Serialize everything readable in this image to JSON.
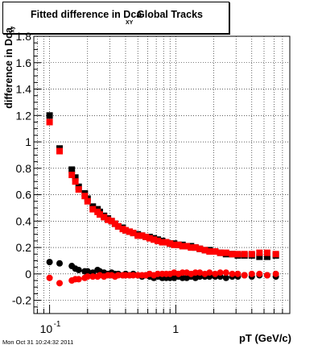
{
  "chart_data": {
    "type": "scatter",
    "title": "Fitted difference in Dca",
    "title_subscript": "XY",
    "title_tail": "Global Tracks",
    "xlabel": "pT (GeV/c)",
    "ylabel": "difference in Dca",
    "ylabel_subscript": "xy",
    "xscale": "log",
    "xlim": [
      0.075,
      8.0
    ],
    "ylim": [
      -0.3,
      1.8
    ],
    "grid": true,
    "x_ticks": [
      "10^-1",
      "1"
    ],
    "y_ticks": [
      "-0.2",
      "0",
      "0.2",
      "0.4",
      "0.6",
      "0.8",
      "1",
      "1.2",
      "1.4",
      "1.6",
      "1.8"
    ],
    "series": [
      {
        "color": "#000000",
        "marker": "square",
        "x": [
          0.1,
          0.12,
          0.15,
          0.16,
          0.17,
          0.19,
          0.2,
          0.22,
          0.24,
          0.25,
          0.27,
          0.29,
          0.31,
          0.33,
          0.35,
          0.38,
          0.4,
          0.43,
          0.46,
          0.5,
          0.54,
          0.58,
          0.62,
          0.67,
          0.72,
          0.78,
          0.84,
          0.9,
          0.97,
          1.05,
          1.13,
          1.22,
          1.32,
          1.43,
          1.55,
          1.7,
          1.85,
          2.05,
          2.25,
          2.5,
          2.8,
          3.1,
          3.5,
          4.0,
          4.6,
          5.3,
          6.2
        ],
        "y": [
          1.2,
          0.95,
          0.79,
          0.73,
          0.66,
          0.61,
          0.57,
          0.51,
          0.49,
          0.47,
          0.44,
          0.42,
          0.4,
          0.38,
          0.36,
          0.35,
          0.33,
          0.32,
          0.31,
          0.3,
          0.29,
          0.28,
          0.28,
          0.27,
          0.26,
          0.25,
          0.24,
          0.23,
          0.23,
          0.22,
          0.22,
          0.21,
          0.21,
          0.2,
          0.19,
          0.18,
          0.18,
          0.17,
          0.16,
          0.15,
          0.15,
          0.14,
          0.14,
          0.14,
          0.13,
          0.13,
          0.14
        ]
      },
      {
        "color": "#ff0000",
        "marker": "square",
        "x": [
          0.1,
          0.12,
          0.15,
          0.16,
          0.17,
          0.19,
          0.2,
          0.22,
          0.24,
          0.25,
          0.27,
          0.29,
          0.31,
          0.33,
          0.35,
          0.38,
          0.4,
          0.43,
          0.46,
          0.5,
          0.54,
          0.58,
          0.62,
          0.67,
          0.72,
          0.78,
          0.84,
          0.9,
          0.97,
          1.05,
          1.13,
          1.22,
          1.32,
          1.43,
          1.55,
          1.7,
          1.85,
          2.05,
          2.25,
          2.5,
          2.8,
          3.1,
          3.5,
          4.0,
          4.6,
          5.3,
          6.2
        ],
        "y": [
          1.15,
          0.93,
          0.75,
          0.7,
          0.64,
          0.59,
          0.55,
          0.49,
          0.47,
          0.45,
          0.43,
          0.41,
          0.4,
          0.38,
          0.36,
          0.34,
          0.33,
          0.32,
          0.31,
          0.29,
          0.29,
          0.28,
          0.27,
          0.26,
          0.25,
          0.24,
          0.24,
          0.23,
          0.22,
          0.22,
          0.21,
          0.21,
          0.2,
          0.2,
          0.19,
          0.18,
          0.17,
          0.17,
          0.16,
          0.16,
          0.15,
          0.15,
          0.15,
          0.15,
          0.16,
          0.16,
          0.15
        ]
      },
      {
        "color": "#000000",
        "marker": "circle",
        "x": [
          0.1,
          0.12,
          0.15,
          0.16,
          0.17,
          0.19,
          0.2,
          0.22,
          0.24,
          0.25,
          0.27,
          0.29,
          0.31,
          0.33,
          0.35,
          0.38,
          0.4,
          0.43,
          0.46,
          0.5,
          0.54,
          0.58,
          0.62,
          0.67,
          0.72,
          0.78,
          0.84,
          0.9,
          0.97,
          1.05,
          1.13,
          1.22,
          1.32,
          1.43,
          1.55,
          1.7,
          1.85,
          2.05,
          2.25,
          2.5,
          2.8,
          3.1,
          3.5,
          4.0,
          4.6,
          5.3,
          6.2
        ],
        "y": [
          0.09,
          0.08,
          0.06,
          0.04,
          0.03,
          0.02,
          0.02,
          0.01,
          0.03,
          0.02,
          0.01,
          0.0,
          0.01,
          0.0,
          0.0,
          -0.01,
          0.0,
          -0.01,
          0.0,
          -0.01,
          -0.02,
          -0.01,
          -0.02,
          -0.03,
          -0.02,
          -0.03,
          -0.03,
          -0.03,
          -0.03,
          -0.02,
          -0.03,
          -0.03,
          -0.02,
          -0.03,
          -0.02,
          -0.02,
          -0.02,
          -0.02,
          -0.02,
          -0.03,
          -0.02,
          -0.02,
          -0.01,
          -0.02,
          -0.01,
          -0.01,
          -0.02
        ]
      },
      {
        "color": "#ff0000",
        "marker": "circle",
        "x": [
          0.1,
          0.12,
          0.15,
          0.16,
          0.17,
          0.19,
          0.2,
          0.22,
          0.24,
          0.25,
          0.27,
          0.29,
          0.31,
          0.33,
          0.35,
          0.38,
          0.4,
          0.43,
          0.46,
          0.5,
          0.54,
          0.58,
          0.62,
          0.67,
          0.72,
          0.78,
          0.84,
          0.9,
          0.97,
          1.05,
          1.13,
          1.22,
          1.32,
          1.43,
          1.55,
          1.7,
          1.85,
          2.05,
          2.25,
          2.5,
          2.8,
          3.1,
          3.5,
          4.0,
          4.6,
          5.3,
          6.2
        ],
        "y": [
          -0.03,
          -0.07,
          -0.05,
          -0.04,
          -0.04,
          -0.03,
          -0.02,
          -0.02,
          -0.02,
          -0.01,
          -0.02,
          -0.01,
          -0.01,
          -0.02,
          -0.01,
          -0.01,
          -0.01,
          -0.01,
          -0.01,
          -0.01,
          -0.01,
          -0.01,
          0.0,
          -0.01,
          0.0,
          0.0,
          0.0,
          0.0,
          0.01,
          0.0,
          0.01,
          0.01,
          0.0,
          0.01,
          0.01,
          0.0,
          0.01,
          0.0,
          0.01,
          0.01,
          0.0,
          0.0,
          -0.01,
          0.0,
          0.0,
          -0.01,
          0.0
        ]
      }
    ]
  },
  "footer": {
    "timestamp": "Mon Oct 31 10:24:32 2011"
  }
}
